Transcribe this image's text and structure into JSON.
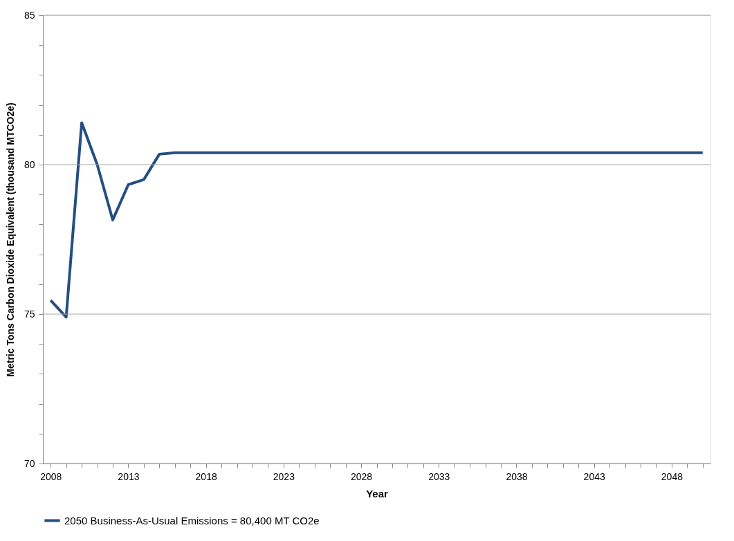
{
  "chart_data": {
    "type": "line",
    "xlabel": "Year",
    "ylabel": "Metric Tons Carbon Dioxide Equivalent (thousand MTCO2e)",
    "x": [
      2008,
      2009,
      2010,
      2011,
      2012,
      2013,
      2014,
      2015,
      2016,
      2017,
      2018,
      2019,
      2020,
      2021,
      2022,
      2023,
      2024,
      2025,
      2026,
      2027,
      2028,
      2029,
      2030,
      2031,
      2032,
      2033,
      2034,
      2035,
      2036,
      2037,
      2038,
      2039,
      2040,
      2041,
      2042,
      2043,
      2044,
      2045,
      2046,
      2047,
      2048,
      2049,
      2050
    ],
    "series": [
      {
        "name": "2050 Business-As-Usual Emissions = 80,400 MT CO2e",
        "color": "#254f82",
        "values": [
          75.46,
          74.9,
          81.4,
          80.0,
          78.15,
          79.33,
          79.5,
          80.35,
          80.4,
          80.4,
          80.4,
          80.4,
          80.4,
          80.4,
          80.4,
          80.4,
          80.4,
          80.4,
          80.4,
          80.4,
          80.4,
          80.4,
          80.4,
          80.4,
          80.4,
          80.4,
          80.4,
          80.4,
          80.4,
          80.4,
          80.4,
          80.4,
          80.4,
          80.4,
          80.4,
          80.4,
          80.4,
          80.4,
          80.4,
          80.4,
          80.4,
          80.4,
          80.4
        ]
      }
    ],
    "xlim": [
      2007.5,
      2050.5
    ],
    "xticks": [
      2008,
      {
        "value": 2009,
        "label": null
      },
      {
        "value": 2010,
        "label": null
      },
      {
        "value": 2011,
        "label": null
      },
      {
        "value": 2012,
        "label": null
      },
      2013,
      {
        "value": 2014,
        "label": null
      },
      {
        "value": 2015,
        "label": null
      },
      {
        "value": 2016,
        "label": null
      },
      {
        "value": 2017,
        "label": null
      },
      2018,
      {
        "value": 2019,
        "label": null
      },
      {
        "value": 2020,
        "label": null
      },
      {
        "value": 2021,
        "label": null
      },
      {
        "value": 2022,
        "label": null
      },
      2023,
      {
        "value": 2024,
        "label": null
      },
      {
        "value": 2025,
        "label": null
      },
      {
        "value": 2026,
        "label": null
      },
      {
        "value": 2027,
        "label": null
      },
      2028,
      {
        "value": 2029,
        "label": null
      },
      {
        "value": 2030,
        "label": null
      },
      {
        "value": 2031,
        "label": null
      },
      {
        "value": 2032,
        "label": null
      },
      2033,
      {
        "value": 2034,
        "label": null
      },
      {
        "value": 2035,
        "label": null
      },
      {
        "value": 2036,
        "label": null
      },
      {
        "value": 2037,
        "label": null
      },
      2038,
      {
        "value": 2039,
        "label": null
      },
      {
        "value": 2040,
        "label": null
      },
      {
        "value": 2041,
        "label": null
      },
      {
        "value": 2042,
        "label": null
      },
      2043,
      {
        "value": 2044,
        "label": null
      },
      {
        "value": 2045,
        "label": null
      },
      {
        "value": 2046,
        "label": null
      },
      {
        "value": 2047,
        "label": null
      },
      2048,
      {
        "value": 2049,
        "label": null
      },
      {
        "value": 2050,
        "label": null
      }
    ],
    "ylim": [
      70,
      85
    ],
    "yticks": [
      70,
      {
        "value": 71,
        "label": null
      },
      {
        "value": 72,
        "label": null
      },
      {
        "value": 73,
        "label": null
      },
      {
        "value": 74,
        "label": null
      },
      75,
      {
        "value": 76,
        "label": null
      },
      {
        "value": 77,
        "label": null
      },
      {
        "value": 78,
        "label": null
      },
      {
        "value": 79,
        "label": null
      },
      80,
      {
        "value": 81,
        "label": null
      },
      {
        "value": 82,
        "label": null
      },
      {
        "value": 83,
        "label": null
      },
      {
        "value": 84,
        "label": null
      },
      85
    ],
    "grid": "y",
    "legend": "bottom",
    "marker": "none",
    "line_style": "solid"
  }
}
